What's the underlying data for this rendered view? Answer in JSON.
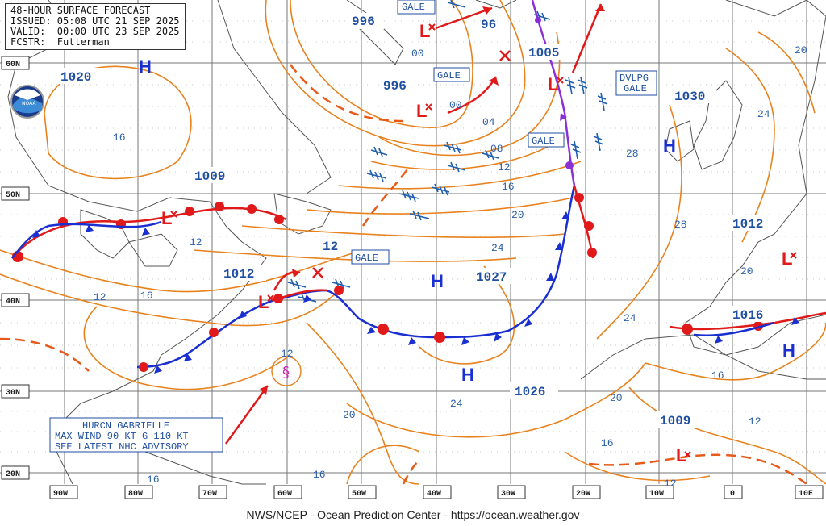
{
  "header": {
    "title": "48-HOUR SURFACE FORECAST",
    "issued": "ISSUED: 05:08 UTC 21 SEP 2025",
    "valid": "VALID:  00:00 UTC 23 SEP 2025",
    "forecaster": "FCSTR:  Futterman"
  },
  "footer": "NWS/NCEP - Ocean Prediction Center - https://ocean.weather.gov",
  "logo": "NOAA",
  "lat_labels": [
    "60N",
    "50N",
    "40N",
    "30N",
    "20N"
  ],
  "lon_labels": [
    "90W",
    "80W",
    "70W",
    "60W",
    "50W",
    "40W",
    "30W",
    "20W",
    "10W",
    "0",
    "10E"
  ],
  "pressure_centers": [
    {
      "type": "H",
      "value": "1020"
    },
    {
      "type": "H",
      "value": "1030"
    },
    {
      "type": "H",
      "value": "1027"
    },
    {
      "type": "H",
      "value": "1026"
    },
    {
      "type": "H",
      "value": ""
    },
    {
      "type": "L",
      "value": "1009"
    },
    {
      "type": "L",
      "value": "1012"
    },
    {
      "type": "L",
      "value": "996"
    },
    {
      "type": "L",
      "value": "996"
    },
    {
      "type": "L",
      "value": "1005"
    },
    {
      "type": "L",
      "value": "1012"
    },
    {
      "type": "L",
      "value": "1016"
    },
    {
      "type": "L",
      "value": "1009"
    }
  ],
  "warnings": [
    "GALE",
    "GALE",
    "GALE",
    "GALE",
    "DVLPG",
    "GALE"
  ],
  "isobar_labels": [
    "00",
    "96",
    "00",
    "04",
    "08",
    "12",
    "16",
    "20",
    "24",
    "28",
    "28",
    "24",
    "20",
    "16",
    "12",
    "12",
    "16",
    "12",
    "12",
    "16",
    "20",
    "24",
    "20",
    "16",
    "12",
    "16",
    "12",
    "16",
    "20",
    "24"
  ],
  "hurricane": {
    "line1": "HURCN GABRIELLE",
    "line2": "MAX WIND 90 KT G 110 KT",
    "line3": "SEE LATEST NHC ADVISORY"
  },
  "colors": {
    "isobar": "#e8821e",
    "warm_front": "#e01a1a",
    "cold_front": "#1a2fd0",
    "occluded": "#8b2fd6",
    "high": "#1a2fd0",
    "low": "#e01a1a",
    "label": "#1f4fa0"
  }
}
